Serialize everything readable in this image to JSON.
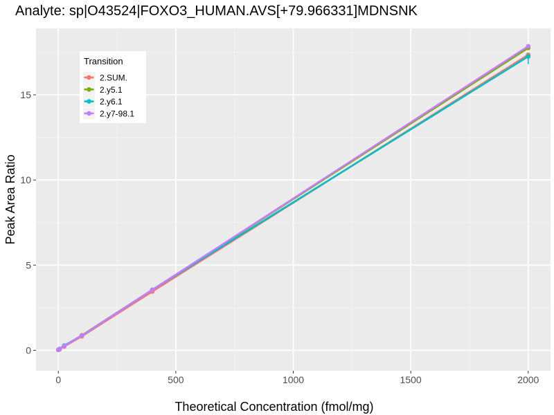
{
  "chart_data": {
    "type": "line",
    "title": "Analyte: sp|O43524|FOXO3_HUMAN.AVS[+79.966331]MDNSNK",
    "xlabel": "Theoretical Concentration (fmol/mg)",
    "ylabel": "Peak Area Ratio",
    "xlim": [
      -95,
      2095
    ],
    "ylim": [
      -1.2,
      18.9
    ],
    "x_ticks": [
      0,
      500,
      1000,
      1500,
      2000
    ],
    "x_tick_labels": [
      "0",
      "500",
      "1000",
      "1500",
      "2000"
    ],
    "y_ticks": [
      0,
      5,
      10,
      15
    ],
    "y_tick_labels": [
      "0",
      "5",
      "10",
      "15"
    ],
    "grid": true,
    "panel_background": "#ebebeb",
    "legend": {
      "title": "Transition",
      "position": "top-left"
    },
    "x": [
      0,
      5,
      25,
      100,
      400,
      2000
    ],
    "series": [
      {
        "name": "2.SUM.",
        "color": "#F8766D",
        "values": [
          0.02,
          0.05,
          0.22,
          0.82,
          3.45,
          17.35
        ],
        "error_upper": [
          null,
          null,
          null,
          null,
          null,
          0.0
        ],
        "error_lower": [
          null,
          null,
          null,
          null,
          null,
          0.0
        ]
      },
      {
        "name": "2.y5.1",
        "color": "#7CAE00",
        "values": [
          0.03,
          0.07,
          0.25,
          0.88,
          3.55,
          17.75
        ]
      },
      {
        "name": "2.y6.1",
        "color": "#00BFC4",
        "values": [
          0.03,
          0.08,
          0.28,
          0.86,
          3.55,
          17.25
        ],
        "error_upper": [
          null,
          null,
          null,
          null,
          null,
          0.0
        ],
        "error_lower": [
          null,
          null,
          null,
          null,
          null,
          0.45
        ]
      },
      {
        "name": "2.y7-98.1",
        "color": "#C77CFF",
        "values": [
          0.03,
          0.07,
          0.25,
          0.86,
          3.55,
          17.85
        ]
      }
    ]
  }
}
